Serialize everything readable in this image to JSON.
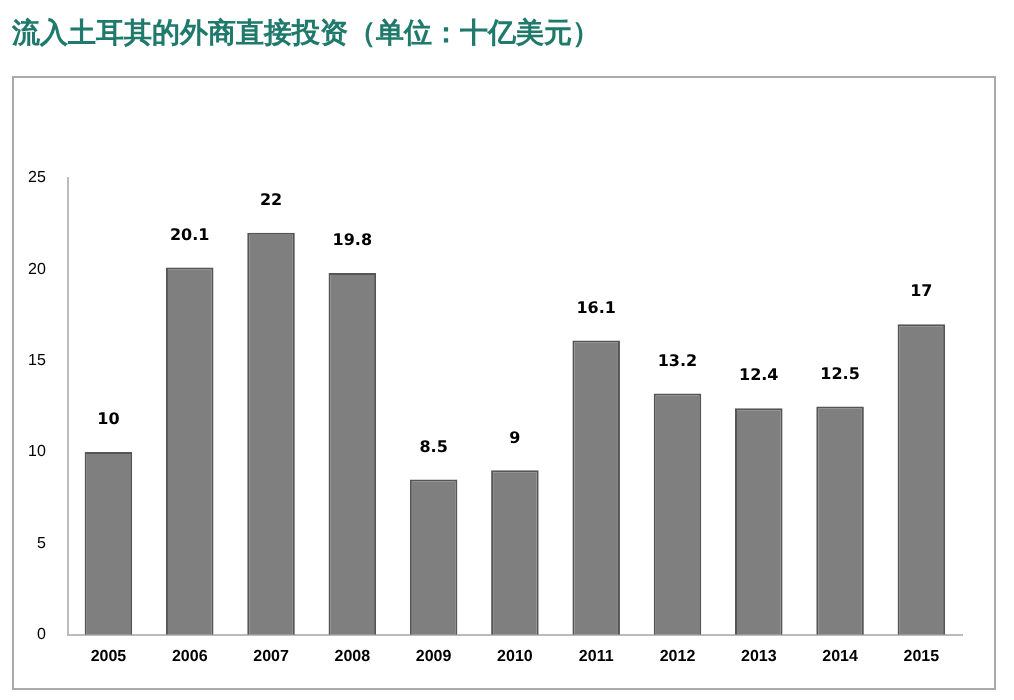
{
  "chart_data": {
    "type": "bar",
    "title": "流入土耳其的外商直接投资（单位：十亿美元）",
    "categories": [
      "2005",
      "2006",
      "2007",
      "2008",
      "2009",
      "2010",
      "2011",
      "2012",
      "2013",
      "2014",
      "2015"
    ],
    "values": [
      10,
      20.1,
      22,
      19.8,
      8.5,
      9,
      16.1,
      13.2,
      12.4,
      12.5,
      17
    ],
    "color": "#7f7f7f",
    "ylim": [
      0,
      25
    ],
    "yticks": [
      0,
      5,
      10,
      15,
      20,
      25
    ],
    "grid": false,
    "legend": false,
    "data_labels": true
  }
}
